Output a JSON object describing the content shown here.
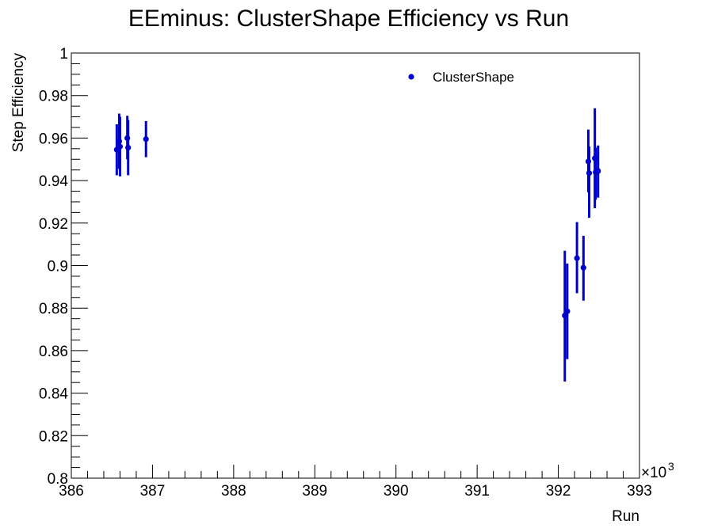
{
  "chart_data": {
    "type": "scatter",
    "title": "EEminus: ClusterShape Efficiency vs Run",
    "xlabel": "Run",
    "ylabel": "Step Efficiency",
    "x_multiplier_label": "×10",
    "x_multiplier_exponent": "3",
    "xlim": [
      386,
      393
    ],
    "ylim": [
      0.8,
      1.0
    ],
    "x_ticks": [
      {
        "value": 386,
        "label": "386"
      },
      {
        "value": 387,
        "label": "387"
      },
      {
        "value": 388,
        "label": "388"
      },
      {
        "value": 389,
        "label": "389"
      },
      {
        "value": 390,
        "label": "390"
      },
      {
        "value": 391,
        "label": "391"
      },
      {
        "value": 392,
        "label": "392"
      },
      {
        "value": 393,
        "label": "393"
      }
    ],
    "y_ticks": [
      {
        "value": 0.8,
        "label": "0.8"
      },
      {
        "value": 0.82,
        "label": "0.82"
      },
      {
        "value": 0.84,
        "label": "0.84"
      },
      {
        "value": 0.86,
        "label": "0.86"
      },
      {
        "value": 0.88,
        "label": "0.88"
      },
      {
        "value": 0.9,
        "label": "0.9"
      },
      {
        "value": 0.92,
        "label": "0.92"
      },
      {
        "value": 0.94,
        "label": "0.94"
      },
      {
        "value": 0.96,
        "label": "0.96"
      },
      {
        "value": 0.98,
        "label": "0.98"
      },
      {
        "value": 1.0,
        "label": "1"
      }
    ],
    "grid": false,
    "legend": {
      "placement": "top-right"
    },
    "series": [
      {
        "name": "ClusterShape",
        "color": "#0000cc",
        "points": [
          {
            "x": 386.56,
            "y": 0.9545,
            "y_low": 0.9425,
            "y_high": 0.9665
          },
          {
            "x": 386.59,
            "y": 0.9585,
            "y_low": 0.9455,
            "y_high": 0.9715
          },
          {
            "x": 386.6,
            "y": 0.956,
            "y_low": 0.942,
            "y_high": 0.97
          },
          {
            "x": 386.69,
            "y": 0.96,
            "y_low": 0.95,
            "y_high": 0.9705
          },
          {
            "x": 386.7,
            "y": 0.9555,
            "y_low": 0.9425,
            "y_high": 0.9685
          },
          {
            "x": 386.92,
            "y": 0.9595,
            "y_low": 0.951,
            "y_high": 0.968
          },
          {
            "x": 392.08,
            "y": 0.8765,
            "y_low": 0.8455,
            "y_high": 0.907
          },
          {
            "x": 392.11,
            "y": 0.8785,
            "y_low": 0.856,
            "y_high": 0.901
          },
          {
            "x": 392.23,
            "y": 0.9035,
            "y_low": 0.887,
            "y_high": 0.9205
          },
          {
            "x": 392.31,
            "y": 0.899,
            "y_low": 0.8835,
            "y_high": 0.914
          },
          {
            "x": 392.37,
            "y": 0.949,
            "y_low": 0.9345,
            "y_high": 0.964
          },
          {
            "x": 392.38,
            "y": 0.9435,
            "y_low": 0.9225,
            "y_high": 0.956
          },
          {
            "x": 392.45,
            "y": 0.9505,
            "y_low": 0.927,
            "y_high": 0.974
          },
          {
            "x": 392.46,
            "y": 0.944,
            "y_low": 0.931,
            "y_high": 0.9555
          },
          {
            "x": 392.49,
            "y": 0.9445,
            "y_low": 0.932,
            "y_high": 0.9565
          }
        ]
      }
    ]
  }
}
